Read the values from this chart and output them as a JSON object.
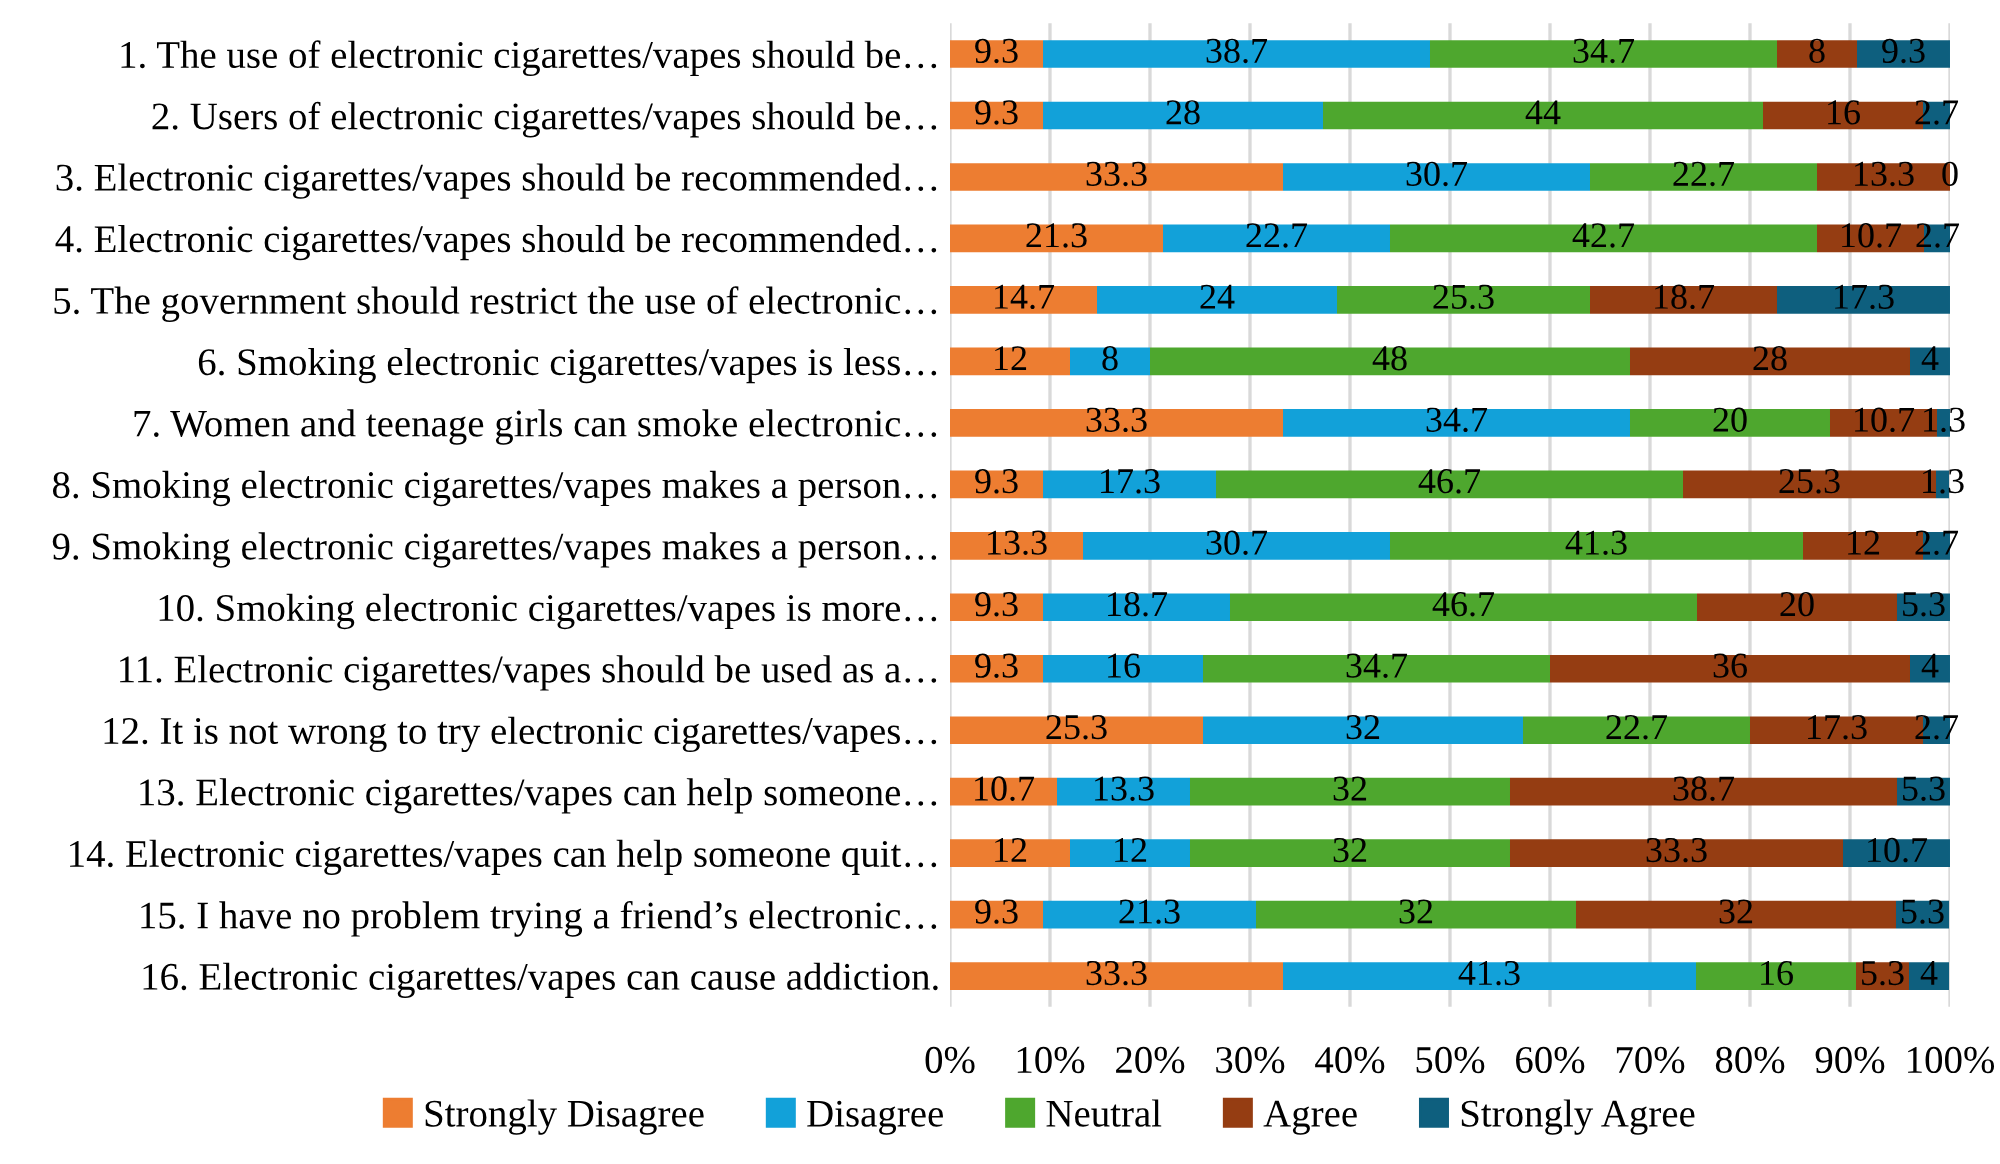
{
  "chart_data": {
    "type": "bar",
    "orientation": "horizontal",
    "stacked": true,
    "data_labels": true,
    "grid": "x",
    "legend": "bottom",
    "categories": [
      "1. The use of electronic cigarettes/vapes should be…",
      "2. Users of electronic cigarettes/vapes should be…",
      "3. Electronic cigarettes/vapes should be recommended…",
      "4. Electronic cigarettes/vapes should be recommended…",
      "5. The government should restrict the use of electronic…",
      "6. Smoking electronic cigarettes/vapes is less…",
      "7. Women and teenage girls can smoke electronic…",
      "8. Smoking electronic cigarettes/vapes makes a person…",
      "9. Smoking electronic cigarettes/vapes makes a person…",
      "10. Smoking electronic cigarettes/vapes is more…",
      "11. Electronic cigarettes/vapes should be used as a…",
      "12. It is not wrong to try electronic cigarettes/vapes…",
      "13. Electronic cigarettes/vapes can help someone…",
      "14. Electronic cigarettes/vapes can help someone quit…",
      "15. I have no problem trying a friend’s electronic…",
      "16. Electronic cigarettes/vapes can cause addiction."
    ],
    "series": [
      {
        "name": "Strongly Disagree",
        "color": "#ed7d31",
        "values": [
          9.3,
          9.3,
          33.3,
          21.3,
          14.7,
          12,
          33.3,
          9.3,
          13.3,
          9.3,
          9.3,
          25.3,
          10.7,
          12,
          9.3,
          33.3
        ]
      },
      {
        "name": "Disagree",
        "color": "#12a1d9",
        "values": [
          38.7,
          28,
          30.7,
          22.7,
          24,
          8,
          34.7,
          17.3,
          30.7,
          18.7,
          16,
          32,
          13.3,
          12,
          21.3,
          41.3
        ]
      },
      {
        "name": "Neutral",
        "color": "#4ea72e",
        "values": [
          34.7,
          44,
          22.7,
          42.7,
          25.3,
          48,
          20,
          46.7,
          41.3,
          46.7,
          34.7,
          22.7,
          32,
          32,
          32,
          16
        ]
      },
      {
        "name": "Agree",
        "color": "#953d12",
        "values": [
          8,
          16,
          13.3,
          10.7,
          18.7,
          28,
          10.7,
          25.3,
          12,
          20,
          36,
          17.3,
          38.7,
          33.3,
          32,
          5.3
        ]
      },
      {
        "name": "Strongly Agree",
        "color": "#0e5f7e",
        "values": [
          9.3,
          2.7,
          0,
          2.7,
          17.3,
          4,
          1.3,
          1.3,
          2.7,
          5.3,
          4,
          2.7,
          5.3,
          10.7,
          5.3,
          4
        ]
      }
    ],
    "xlim": [
      0,
      100
    ],
    "xticks": [
      {
        "value": 0,
        "label": "0%"
      },
      {
        "value": 10,
        "label": "10%"
      },
      {
        "value": 20,
        "label": "20%"
      },
      {
        "value": 30,
        "label": "30%"
      },
      {
        "value": 40,
        "label": "40%"
      },
      {
        "value": 50,
        "label": "50%"
      },
      {
        "value": 60,
        "label": "60%"
      },
      {
        "value": 70,
        "label": "70%"
      },
      {
        "value": 80,
        "label": "80%"
      },
      {
        "value": 90,
        "label": "90%"
      },
      {
        "value": 100,
        "label": "100%"
      }
    ]
  }
}
